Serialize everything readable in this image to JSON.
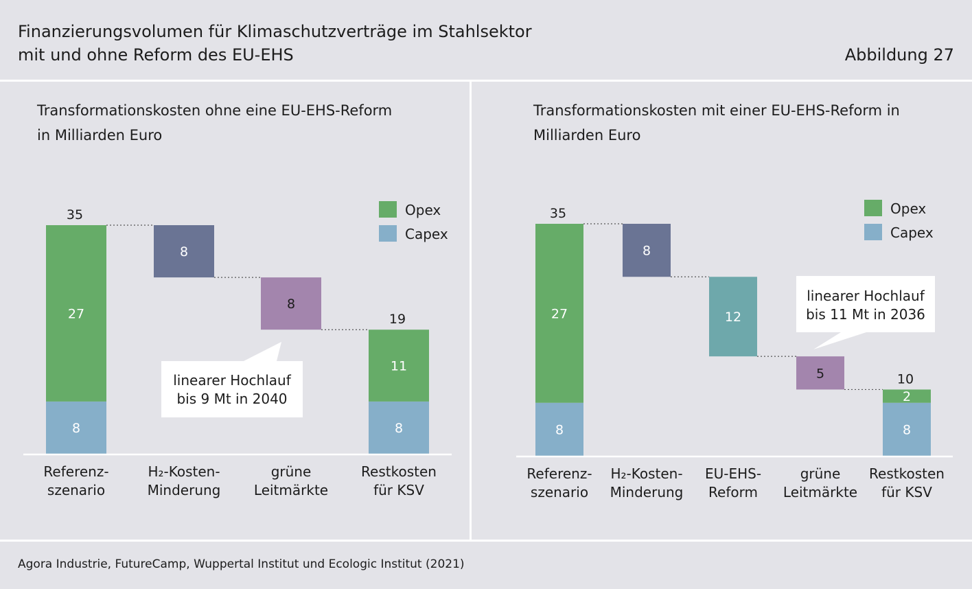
{
  "title_line1": "Finanzierungsvolumen für Klimaschutzverträge im Stahlsektor",
  "title_line2": "mit und ohne Reform des EU-EHS",
  "figure_label": "Abbildung 27",
  "source": "Agora Industrie, FutureCamp, Wuppertal Institut und Ecologic Institut (2021)",
  "colors": {
    "opex": "#66ac68",
    "capex": "#86afc9",
    "h2": "#6a7494",
    "gruene": "#a385ad",
    "eu_ehs": "#6ea8ab"
  },
  "chart_data": [
    {
      "type": "bar",
      "subtype": "waterfall",
      "title_line1": "Transformationskosten ohne eine EU-EHS-Reform",
      "title_line2": "in Milliarden Euro",
      "categories": [
        [
          "Referenz-",
          "szenario"
        ],
        [
          "H₂-Kosten-",
          "Minderung"
        ],
        [
          "grüne",
          "Leitmärkte"
        ],
        [
          "Restkosten",
          "für KSV"
        ]
      ],
      "legend": [
        {
          "name": "Opex",
          "color_key": "opex"
        },
        {
          "name": "Capex",
          "color_key": "capex"
        }
      ],
      "legend_position": "top-right",
      "bars": [
        {
          "kind": "stack",
          "segments": [
            {
              "series": "Capex",
              "value": 8,
              "label": "8",
              "color_key": "capex"
            },
            {
              "series": "Opex",
              "value": 27,
              "label": "27",
              "color_key": "opex"
            }
          ],
          "total_label": "35"
        },
        {
          "kind": "float",
          "from": 27,
          "to": 35,
          "label": "8",
          "color_key": "h2"
        },
        {
          "kind": "float",
          "from": 19,
          "to": 27,
          "label": "8",
          "color_key": "gruene"
        },
        {
          "kind": "stack",
          "segments": [
            {
              "series": "Capex",
              "value": 8,
              "label": "8",
              "color_key": "capex"
            },
            {
              "series": "Opex",
              "value": 11,
              "label": "11",
              "color_key": "opex"
            }
          ],
          "total_label": "19"
        }
      ],
      "callout": {
        "lines": [
          "linearer Hochlauf",
          "bis 9 Mt in 2040"
        ],
        "points_to": 2
      },
      "ylim": [
        0,
        35
      ],
      "grid": false
    },
    {
      "type": "bar",
      "subtype": "waterfall",
      "title_line1": "Transformationskosten mit einer EU-EHS-Reform in",
      "title_line2": "Milliarden Euro",
      "categories": [
        [
          "Referenz-",
          "szenario"
        ],
        [
          "H₂-Kosten-",
          "Minderung"
        ],
        [
          "EU-EHS-",
          "Reform"
        ],
        [
          "grüne",
          "Leitmärkte"
        ],
        [
          "Restkosten",
          "für KSV"
        ]
      ],
      "legend": [
        {
          "name": "Opex",
          "color_key": "opex"
        },
        {
          "name": "Capex",
          "color_key": "capex"
        }
      ],
      "legend_position": "top-right",
      "bars": [
        {
          "kind": "stack",
          "segments": [
            {
              "series": "Capex",
              "value": 8,
              "label": "8",
              "color_key": "capex"
            },
            {
              "series": "Opex",
              "value": 27,
              "label": "27",
              "color_key": "opex"
            }
          ],
          "total_label": "35"
        },
        {
          "kind": "float",
          "from": 27,
          "to": 35,
          "label": "8",
          "color_key": "h2"
        },
        {
          "kind": "float",
          "from": 15,
          "to": 27,
          "label": "12",
          "color_key": "eu_ehs"
        },
        {
          "kind": "float",
          "from": 10,
          "to": 15,
          "label": "5",
          "color_key": "gruene"
        },
        {
          "kind": "stack",
          "segments": [
            {
              "series": "Capex",
              "value": 8,
              "label": "8",
              "color_key": "capex"
            },
            {
              "series": "Opex",
              "value": 2,
              "label": "2",
              "color_key": "opex"
            }
          ],
          "total_label": "10"
        }
      ],
      "callout": {
        "lines": [
          "linearer Hochlauf",
          "bis 11 Mt in 2036"
        ],
        "points_to": 3
      },
      "ylim": [
        0,
        35
      ],
      "grid": false
    }
  ]
}
